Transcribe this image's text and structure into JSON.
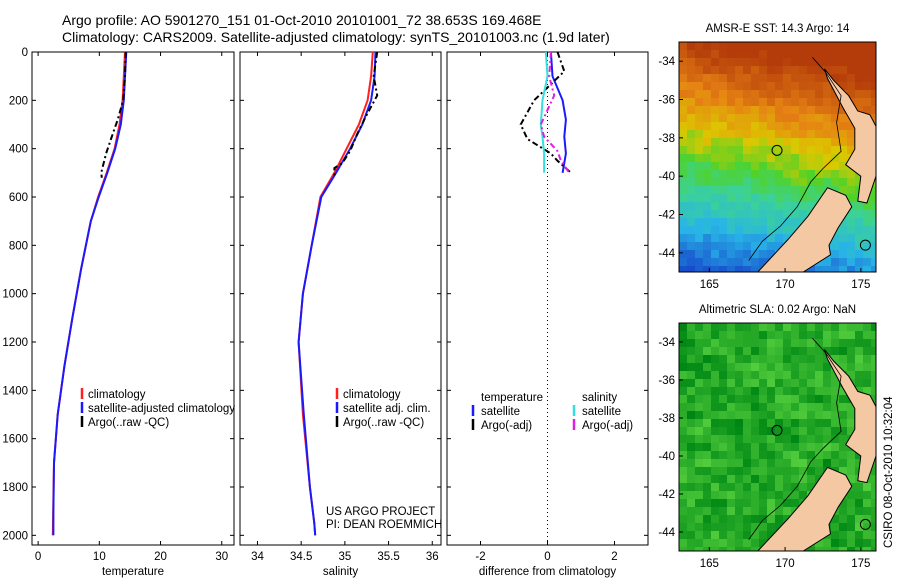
{
  "header": {
    "line1": "Argo profile: AO 5901270_151 01-Oct-2010 20101001_72 38.653S 169.468E",
    "line2": "Climatology: CARS2009. Satellite-adjusted climatology: synTS_20101003.nc (1.9d later)"
  },
  "colors": {
    "climatology": "#ff2020",
    "satellite": "#1a1aff",
    "argo": "#000000",
    "satellite_salinity": "#33e0e0",
    "argo_adj_salinity": "#e020e0",
    "land": "#f4c8a2"
  },
  "chart_data": [
    {
      "type": "line",
      "id": "temperature",
      "xlabel": "temperature",
      "xlim": [
        -1,
        32
      ],
      "ylim": [
        2040,
        0
      ],
      "xticks": [
        0,
        10,
        20,
        30
      ],
      "yticks": [
        0,
        200,
        400,
        600,
        800,
        1000,
        1200,
        1400,
        1600,
        1800,
        2000
      ],
      "legend": [
        "climatology",
        "satellite-adjusted climatology",
        "Argo(..raw -QC)"
      ],
      "series": [
        {
          "name": "climatology",
          "color": "#ff2020",
          "x": [
            14.2,
            14.0,
            13.8,
            13.3,
            12.5,
            11.2,
            9.8,
            8.6,
            7.0,
            5.6,
            4.3,
            3.2,
            2.6,
            2.4
          ],
          "y": [
            0,
            100,
            200,
            300,
            400,
            500,
            600,
            700,
            900,
            1100,
            1300,
            1500,
            1700,
            2000
          ]
        },
        {
          "name": "satellite-adjusted climatology",
          "color": "#1a1aff",
          "x": [
            14.4,
            14.2,
            14.0,
            13.5,
            12.6,
            11.3,
            9.9,
            8.6,
            7.0,
            5.6,
            4.3,
            3.2,
            2.6,
            2.5,
            2.5
          ],
          "y": [
            0,
            100,
            200,
            300,
            400,
            500,
            600,
            700,
            900,
            1100,
            1300,
            1500,
            1700,
            1900,
            2000
          ]
        },
        {
          "name": "Argo(..raw -QC)",
          "color": "#000000",
          "dash": true,
          "x": [
            14.3,
            14.2,
            13.9,
            13.0,
            11.9,
            11.1,
            10.3,
            10.4
          ],
          "y": [
            0,
            100,
            200,
            280,
            360,
            420,
            500,
            520
          ]
        }
      ]
    },
    {
      "type": "line",
      "id": "salinity",
      "xlabel": "salinity",
      "xlim": [
        33.8,
        36.1
      ],
      "ylim": [
        2040,
        0
      ],
      "xticks": [
        34,
        34.5,
        35,
        35.5,
        36
      ],
      "xtick_labels": [
        "34",
        "34.5",
        "35",
        "35.5",
        "36"
      ],
      "legend": [
        "climatology",
        "satellite adj. clim.",
        "Argo(..raw -QC)"
      ],
      "credit": [
        "US ARGO PROJECT",
        "PI: DEAN ROEMMICH"
      ],
      "series": [
        {
          "name": "climatology",
          "color": "#ff2020",
          "x": [
            35.32,
            35.3,
            35.26,
            35.16,
            35.02,
            34.88,
            34.72,
            34.62,
            34.52,
            34.47,
            34.52,
            34.6,
            34.65,
            34.66
          ],
          "y": [
            0,
            100,
            200,
            300,
            400,
            500,
            600,
            800,
            1000,
            1200,
            1500,
            1800,
            1950,
            2000
          ]
        },
        {
          "name": "satellite adj. clim.",
          "color": "#1a1aff",
          "x": [
            35.35,
            35.34,
            35.3,
            35.2,
            35.06,
            34.9,
            34.73,
            34.62,
            34.52,
            34.47,
            34.53,
            34.6,
            34.65,
            34.66
          ],
          "y": [
            0,
            100,
            200,
            300,
            400,
            500,
            600,
            800,
            1000,
            1200,
            1500,
            1800,
            1950,
            2000
          ]
        },
        {
          "name": "Argo(..raw -QC)",
          "color": "#000000",
          "dash": true,
          "x": [
            35.37,
            35.33,
            35.37,
            35.25,
            35.14,
            35.06,
            34.97,
            34.88,
            34.88
          ],
          "y": [
            0,
            100,
            180,
            260,
            340,
            410,
            460,
            480,
            520
          ]
        }
      ]
    },
    {
      "type": "line",
      "id": "difference",
      "xlabel": "difference from climatology",
      "xlim": [
        -3,
        3
      ],
      "ylim": [
        2040,
        0
      ],
      "xticks": [
        -2,
        0,
        2
      ],
      "xtick_labels": [
        "-2",
        "0",
        "2"
      ],
      "legend": {
        "temperature_heading": "temperature",
        "salinity_heading": "salinity",
        "items": [
          "satellite",
          "Argo(-adj)",
          "satellite",
          "Argo(-adj)"
        ]
      },
      "series": [
        {
          "name": "satellite (temperature)",
          "color": "#1a1aff",
          "x": [
            0.1,
            0.15,
            0.45,
            0.55,
            0.5,
            0.55,
            0.45
          ],
          "y": [
            0,
            100,
            200,
            280,
            350,
            420,
            500
          ]
        },
        {
          "name": "Argo(-adj) (temperature)",
          "color": "#000000",
          "dash": true,
          "x": [
            0.3,
            0.5,
            -0.4,
            -0.8,
            -0.6,
            0.1,
            0.3,
            0.7
          ],
          "y": [
            0,
            80,
            200,
            300,
            360,
            420,
            450,
            500
          ]
        },
        {
          "name": "satellite (salinity)",
          "color": "#33e0e0",
          "x": [
            -0.05,
            0.0,
            -0.15,
            -0.2,
            -0.15,
            -0.1,
            -0.1
          ],
          "y": [
            0,
            100,
            200,
            300,
            350,
            420,
            500
          ]
        },
        {
          "name": "Argo(-adj) (salinity)",
          "color": "#e020e0",
          "dash": true,
          "x": [
            0.1,
            0.05,
            0.2,
            -0.2,
            -0.1,
            0.3,
            0.4,
            0.65
          ],
          "y": [
            0,
            100,
            180,
            300,
            350,
            410,
            450,
            500
          ]
        }
      ]
    },
    {
      "type": "heatmap",
      "id": "sst_map",
      "title": "AMSR-E SST: 14.3 Argo: 14",
      "xlim": [
        163,
        176
      ],
      "ylim": [
        -45,
        -33
      ],
      "xticks": [
        165,
        170,
        175
      ],
      "yticks": [
        -34,
        -36,
        -38,
        -40,
        -42,
        -44
      ],
      "argo_position": {
        "lon": 169.468,
        "lat": -38.653
      }
    },
    {
      "type": "heatmap",
      "id": "sla_map",
      "title": "Altimetric SLA: 0.02 Argo: NaN",
      "xlim": [
        163,
        176
      ],
      "ylim": [
        -45,
        -33
      ],
      "xticks": [
        165,
        170,
        175
      ],
      "yticks": [
        -34,
        -36,
        -38,
        -40,
        -42,
        -44
      ],
      "argo_position": {
        "lon": 169.468,
        "lat": -38.653
      }
    }
  ],
  "stamp": "CSIRO 08-Oct-2010 10:32:04"
}
